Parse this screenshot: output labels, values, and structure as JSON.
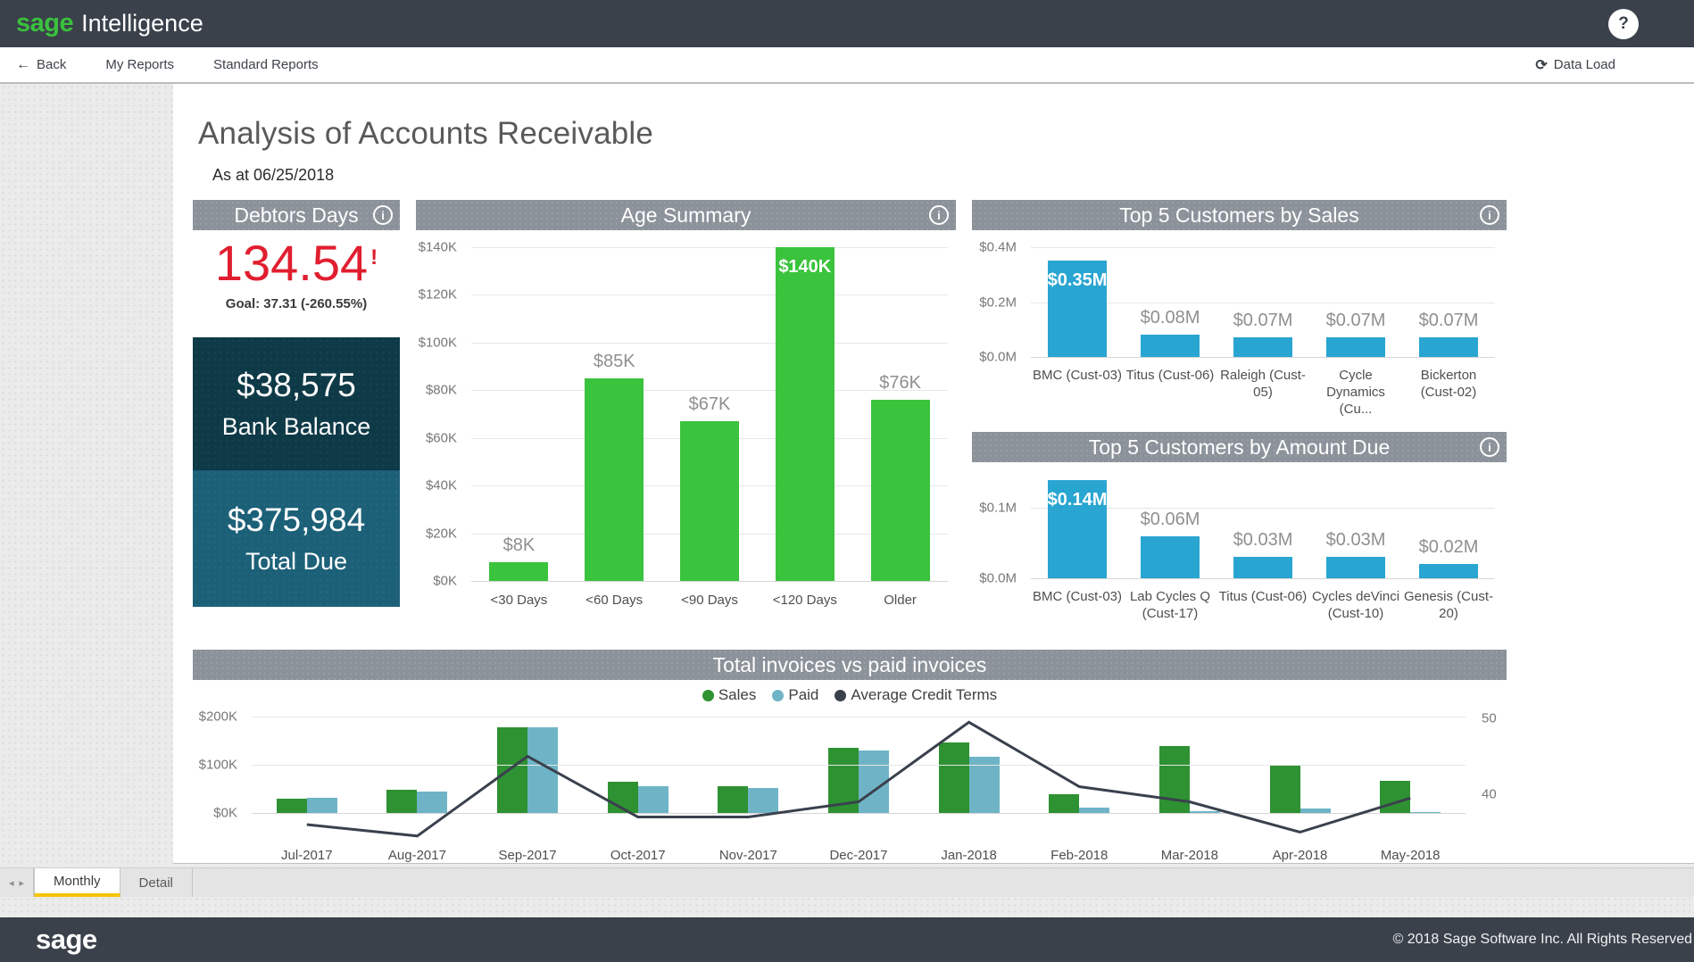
{
  "topbar": {
    "brand": "sage",
    "product": "Intelligence",
    "help_label": "?"
  },
  "navbar": {
    "back_label": "Back",
    "my_reports": "My Reports",
    "standard_reports": "Standard Reports",
    "data_load": "Data Load"
  },
  "report": {
    "title": "Analysis of Accounts Receivable",
    "as_at": "As at 06/25/2018"
  },
  "debtors_days": {
    "title": "Debtors Days",
    "value": "134.54",
    "alert_mark": "!",
    "goal": "Goal: 37.31 (-260.55%)",
    "value_color": "#e01e2f",
    "kpis": [
      {
        "value": "$38,575",
        "label": "Bank Balance",
        "bg": "#0e3947"
      },
      {
        "value": "$375,984",
        "label": "Total Due",
        "bg": "#1c6078"
      }
    ]
  },
  "chart_data": [
    {
      "type": "bar",
      "title": "Age Summary",
      "categories": [
        "<30 Days",
        "<60 Days",
        "<90 Days",
        "<120 Days",
        "Older"
      ],
      "values": [
        8,
        85,
        67,
        140,
        76
      ],
      "labels": [
        "$8K",
        "$85K",
        "$67K",
        "$140K",
        "$76K"
      ],
      "label_position": [
        "above",
        "above",
        "above",
        "inside",
        "above"
      ],
      "unit": "thousand USD",
      "ylim": [
        0,
        140
      ],
      "yticks": [
        0,
        20,
        40,
        60,
        80,
        100,
        120,
        140
      ],
      "ytick_labels": [
        "$0K",
        "$20K",
        "$40K",
        "$60K",
        "$80K",
        "$100K",
        "$120K",
        "$140K"
      ],
      "bar_color": "#3ac33c",
      "grid": true
    },
    {
      "type": "bar",
      "title": "Top 5 Customers by Sales",
      "categories": [
        "BMC (Cust-03)",
        "Titus (Cust-06)",
        "Raleigh (Cust-05)",
        "Cycle Dynamics (Cu...",
        "Bickerton (Cust-02)"
      ],
      "values": [
        0.35,
        0.08,
        0.07,
        0.07,
        0.07
      ],
      "labels": [
        "$0.35M",
        "$0.08M",
        "$0.07M",
        "$0.07M",
        "$0.07M"
      ],
      "label_position": [
        "inside",
        "above",
        "above",
        "above",
        "above"
      ],
      "unit": "million USD",
      "ylim": [
        0,
        0.4
      ],
      "yticks": [
        0,
        0.2,
        0.4
      ],
      "ytick_labels": [
        "$0.0M",
        "$0.2M",
        "$0.4M"
      ],
      "bar_color": "#29a5d1",
      "grid": true
    },
    {
      "type": "bar",
      "title": "Top 5 Customers by Amount Due",
      "categories": [
        "BMC (Cust-03)",
        "Lab Cycles Q (Cust-17)",
        "Titus (Cust-06)",
        "Cycles deVinci (Cust-10)",
        "Genesis (Cust-20)"
      ],
      "values": [
        0.14,
        0.06,
        0.03,
        0.03,
        0.02
      ],
      "labels": [
        "$0.14M",
        "$0.06M",
        "$0.03M",
        "$0.03M",
        "$0.02M"
      ],
      "label_position": [
        "inside",
        "above",
        "above",
        "above",
        "above"
      ],
      "unit": "million USD",
      "ylim": [
        0,
        0.15
      ],
      "yticks": [
        0,
        0.1
      ],
      "ytick_labels": [
        "$0.0M",
        "$0.1M"
      ],
      "bar_color": "#29a5d1",
      "grid": true
    },
    {
      "type": "combo",
      "title": "Total invoices vs paid invoices",
      "legend_position": "top-center",
      "categories": [
        "Jul-2017",
        "Aug-2017",
        "Sep-2017",
        "Oct-2017",
        "Nov-2017",
        "Dec-2017",
        "Jan-2018",
        "Feb-2018",
        "Mar-2018",
        "Apr-2018",
        "May-2018"
      ],
      "series": [
        {
          "name": "Sales",
          "type": "bar",
          "color": "#2e9132",
          "axis": "left",
          "values": [
            30,
            48,
            178,
            64,
            56,
            135,
            147,
            39,
            138,
            99,
            67
          ]
        },
        {
          "name": "Paid",
          "type": "bar",
          "color": "#6fb4c6",
          "axis": "left",
          "values": [
            31,
            44,
            177,
            56,
            52,
            129,
            116,
            12,
            4,
            10,
            2
          ]
        },
        {
          "name": "Average Credit Terms",
          "type": "line",
          "color": "#3a414d",
          "axis": "right",
          "values": [
            36,
            34.5,
            45,
            37,
            37,
            39,
            49.5,
            41,
            39,
            35,
            39.5
          ]
        }
      ],
      "unit_left": "thousand USD",
      "ylim_left": [
        0,
        200
      ],
      "yticks_left": [
        0,
        100,
        200
      ],
      "ytick_labels_left": [
        "$0K",
        "$100K",
        "$200K"
      ],
      "yticks_right": [
        40,
        50
      ],
      "ytick_labels_right": [
        "40",
        "50"
      ],
      "grid": true
    }
  ],
  "tabs": {
    "active": "Monthly",
    "items": [
      "Monthly",
      "Detail"
    ]
  },
  "footer": {
    "brand": "sage",
    "copyright": "© 2018 Sage Software Inc. All Rights Reserved"
  }
}
